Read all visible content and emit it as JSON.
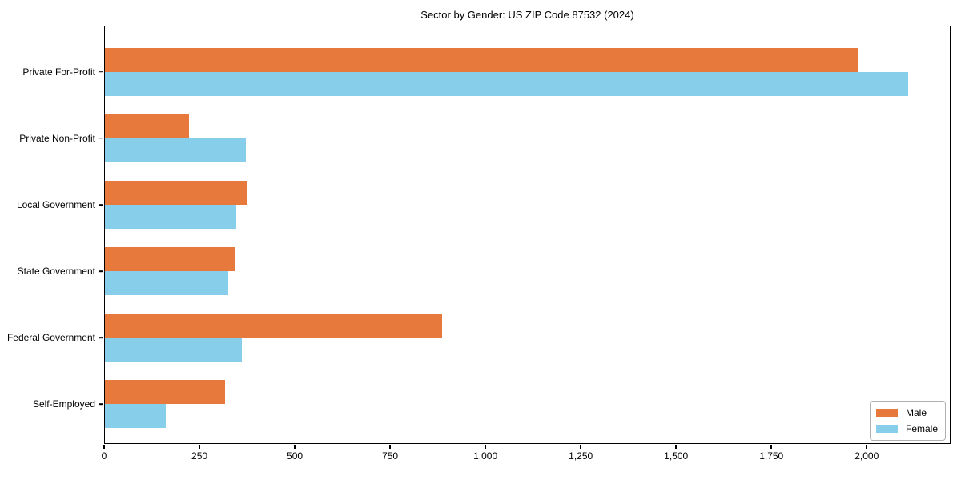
{
  "chart_data": {
    "type": "bar",
    "orientation": "horizontal",
    "title": "Sector by Gender: US ZIP Code 87532 (2024)",
    "categories": [
      "Private For-Profit",
      "Private Non-Profit",
      "Local Government",
      "State Government",
      "Federal Government",
      "Self-Employed"
    ],
    "series": [
      {
        "name": "Male",
        "color": "#E7793C",
        "values": [
          1980,
          220,
          375,
          340,
          885,
          315
        ]
      },
      {
        "name": "Female",
        "color": "#87CEEB",
        "values": [
          2110,
          370,
          345,
          325,
          360,
          160
        ]
      }
    ],
    "xlabel": "",
    "ylabel": "",
    "xlim": [
      0,
      2220
    ],
    "x_ticks": [
      0,
      250,
      500,
      750,
      1000,
      1250,
      1500,
      1750,
      2000
    ],
    "x_tick_labels": [
      "0",
      "250",
      "500",
      "750",
      "1,000",
      "1,250",
      "1,500",
      "1,750",
      "2,000"
    ],
    "grid": false,
    "legend_position": "lower right"
  }
}
